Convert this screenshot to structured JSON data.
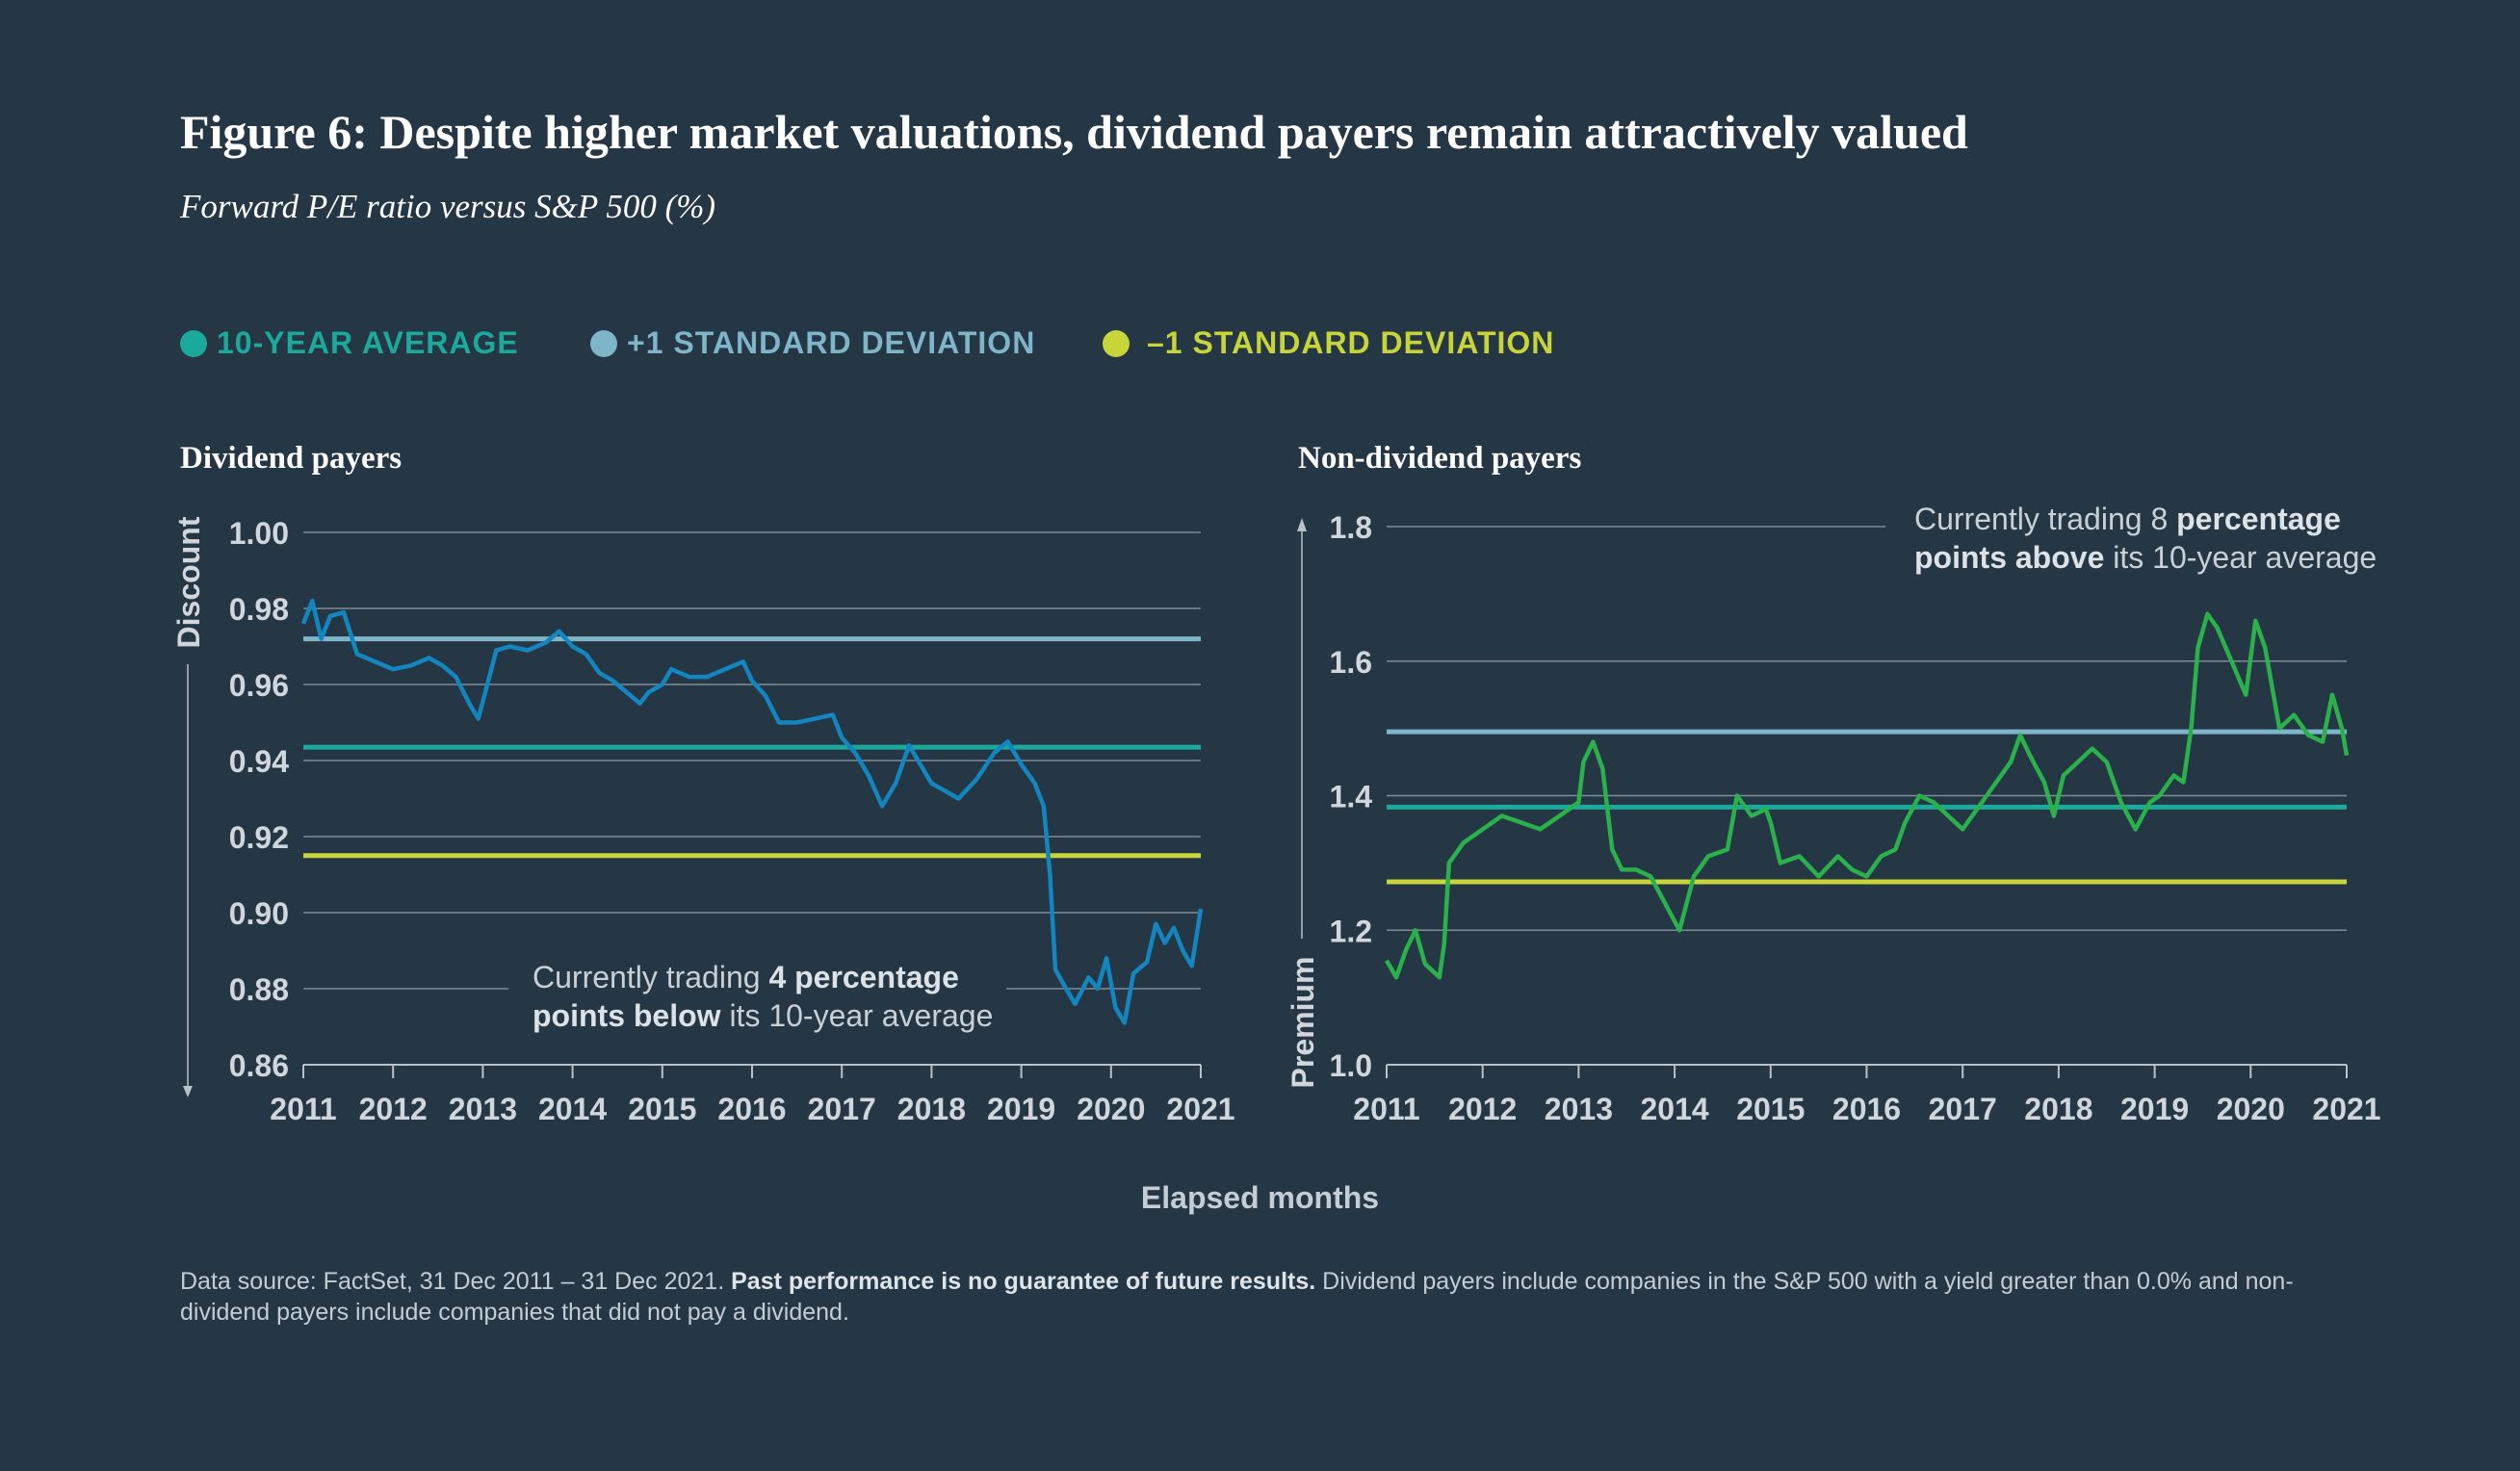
{
  "title": "Figure 6: Despite higher market valuations, dividend payers remain attractively valued",
  "subtitle": "Forward P/E ratio versus S&P 500 (%)",
  "legend": [
    {
      "label": "10-YEAR AVERAGE",
      "color": "#1aa99a"
    },
    {
      "label": "+1 STANDARD DEVIATION",
      "color": "#7fb5c8"
    },
    {
      "label": "–1 STANDARD DEVIATION",
      "color": "#c8d538"
    }
  ],
  "x_axis_label": "Elapsed months",
  "footnote": {
    "part1": "Data source: FactSet, 31 Dec 2011 – 31 Dec 2021. ",
    "bold": "Past performance is no guarantee of future results.",
    "part2": " Dividend payers include companies in the S&P 500 with a yield greater than 0.0% and non-dividend payers include companies that did not pay a dividend."
  },
  "chart_data": [
    {
      "type": "line",
      "title": "Dividend payers",
      "ylabel_top": "Discount",
      "ylim": [
        0.86,
        1.0
      ],
      "yticks": [
        "1.00",
        "0.98",
        "0.96",
        "0.94",
        "0.92",
        "0.90",
        "0.88",
        "0.86"
      ],
      "xlim": [
        2011,
        2021
      ],
      "xticks": [
        "2011",
        "2012",
        "2013",
        "2014",
        "2015",
        "2016",
        "2017",
        "2018",
        "2019",
        "2020",
        "2021"
      ],
      "line_color": "#1386bf",
      "reference_lines": {
        "plus_1_sd": 0.972,
        "average": 0.9435,
        "minus_1_sd": 0.915
      },
      "annotation": {
        "pre": "Currently trading ",
        "bold1": "4 percentage",
        "bold2": "points below",
        "post": " its 10-year average"
      },
      "series": [
        [
          2011.0,
          0.976
        ],
        [
          2011.1,
          0.982
        ],
        [
          2011.2,
          0.972
        ],
        [
          2011.3,
          0.978
        ],
        [
          2011.45,
          0.979
        ],
        [
          2011.6,
          0.968
        ],
        [
          2011.8,
          0.966
        ],
        [
          2012.0,
          0.964
        ],
        [
          2012.2,
          0.965
        ],
        [
          2012.4,
          0.967
        ],
        [
          2012.55,
          0.965
        ],
        [
          2012.7,
          0.962
        ],
        [
          2012.85,
          0.955
        ],
        [
          2012.95,
          0.951
        ],
        [
          2013.05,
          0.96
        ],
        [
          2013.15,
          0.969
        ],
        [
          2013.3,
          0.97
        ],
        [
          2013.5,
          0.969
        ],
        [
          2013.7,
          0.971
        ],
        [
          2013.85,
          0.974
        ],
        [
          2014.0,
          0.97
        ],
        [
          2014.15,
          0.968
        ],
        [
          2014.3,
          0.963
        ],
        [
          2014.45,
          0.961
        ],
        [
          2014.6,
          0.958
        ],
        [
          2014.75,
          0.955
        ],
        [
          2014.85,
          0.958
        ],
        [
          2015.0,
          0.96
        ],
        [
          2015.1,
          0.964
        ],
        [
          2015.3,
          0.962
        ],
        [
          2015.5,
          0.962
        ],
        [
          2015.7,
          0.964
        ],
        [
          2015.9,
          0.966
        ],
        [
          2016.0,
          0.961
        ],
        [
          2016.15,
          0.957
        ],
        [
          2016.3,
          0.95
        ],
        [
          2016.5,
          0.95
        ],
        [
          2016.7,
          0.951
        ],
        [
          2016.9,
          0.952
        ],
        [
          2017.0,
          0.946
        ],
        [
          2017.15,
          0.942
        ],
        [
          2017.3,
          0.936
        ],
        [
          2017.45,
          0.928
        ],
        [
          2017.6,
          0.934
        ],
        [
          2017.75,
          0.944
        ],
        [
          2017.85,
          0.94
        ],
        [
          2018.0,
          0.934
        ],
        [
          2018.15,
          0.932
        ],
        [
          2018.3,
          0.93
        ],
        [
          2018.5,
          0.935
        ],
        [
          2018.7,
          0.942
        ],
        [
          2018.85,
          0.945
        ],
        [
          2019.0,
          0.939
        ],
        [
          2019.15,
          0.934
        ],
        [
          2019.25,
          0.928
        ],
        [
          2019.32,
          0.91
        ],
        [
          2019.38,
          0.885
        ],
        [
          2019.5,
          0.88
        ],
        [
          2019.6,
          0.876
        ],
        [
          2019.75,
          0.883
        ],
        [
          2019.85,
          0.88
        ],
        [
          2019.95,
          0.888
        ],
        [
          2020.05,
          0.875
        ],
        [
          2020.15,
          0.871
        ],
        [
          2020.25,
          0.884
        ],
        [
          2020.4,
          0.887
        ],
        [
          2020.5,
          0.897
        ],
        [
          2020.6,
          0.892
        ],
        [
          2020.7,
          0.896
        ],
        [
          2020.8,
          0.89
        ],
        [
          2020.9,
          0.886
        ],
        [
          2021.0,
          0.901
        ]
      ]
    },
    {
      "type": "line",
      "title": "Non-dividend payers",
      "ylabel_bottom": "Premium",
      "ylim": [
        1.0,
        1.8
      ],
      "yticks": [
        "1.8",
        "1.6",
        "1.4",
        "1.2",
        "1.0"
      ],
      "xlim": [
        2011,
        2021
      ],
      "xticks": [
        "2011",
        "2012",
        "2013",
        "2014",
        "2015",
        "2016",
        "2017",
        "2018",
        "2019",
        "2020",
        "2021"
      ],
      "line_color": "#2ab14b",
      "reference_lines": {
        "plus_1_sd": 1.495,
        "average": 1.383,
        "minus_1_sd": 1.272
      },
      "annotation": {
        "pre": "Currently trading 8 ",
        "bold1": "percentage",
        "bold2": "points above",
        "post": " its 10-year average"
      },
      "series": [
        [
          2011.0,
          1.155
        ],
        [
          2011.1,
          1.13
        ],
        [
          2011.2,
          1.17
        ],
        [
          2011.3,
          1.2
        ],
        [
          2011.4,
          1.15
        ],
        [
          2011.55,
          1.13
        ],
        [
          2011.6,
          1.18
        ],
        [
          2011.65,
          1.3
        ],
        [
          2011.8,
          1.33
        ],
        [
          2012.0,
          1.35
        ],
        [
          2012.2,
          1.37
        ],
        [
          2012.4,
          1.36
        ],
        [
          2012.6,
          1.35
        ],
        [
          2012.8,
          1.37
        ],
        [
          2013.0,
          1.39
        ],
        [
          2013.05,
          1.45
        ],
        [
          2013.15,
          1.48
        ],
        [
          2013.25,
          1.44
        ],
        [
          2013.35,
          1.32
        ],
        [
          2013.45,
          1.29
        ],
        [
          2013.6,
          1.29
        ],
        [
          2013.75,
          1.28
        ],
        [
          2013.9,
          1.24
        ],
        [
          2014.05,
          1.2
        ],
        [
          2014.2,
          1.28
        ],
        [
          2014.35,
          1.31
        ],
        [
          2014.55,
          1.32
        ],
        [
          2014.65,
          1.4
        ],
        [
          2014.8,
          1.37
        ],
        [
          2014.95,
          1.38
        ],
        [
          2015.0,
          1.36
        ],
        [
          2015.1,
          1.3
        ],
        [
          2015.3,
          1.31
        ],
        [
          2015.5,
          1.28
        ],
        [
          2015.7,
          1.31
        ],
        [
          2015.85,
          1.29
        ],
        [
          2016.0,
          1.28
        ],
        [
          2016.15,
          1.31
        ],
        [
          2016.3,
          1.32
        ],
        [
          2016.4,
          1.36
        ],
        [
          2016.55,
          1.4
        ],
        [
          2016.7,
          1.39
        ],
        [
          2016.85,
          1.37
        ],
        [
          2017.0,
          1.35
        ],
        [
          2017.2,
          1.39
        ],
        [
          2017.35,
          1.42
        ],
        [
          2017.5,
          1.45
        ],
        [
          2017.6,
          1.49
        ],
        [
          2017.7,
          1.46
        ],
        [
          2017.85,
          1.42
        ],
        [
          2017.95,
          1.37
        ],
        [
          2018.05,
          1.43
        ],
        [
          2018.2,
          1.45
        ],
        [
          2018.35,
          1.47
        ],
        [
          2018.5,
          1.45
        ],
        [
          2018.65,
          1.39
        ],
        [
          2018.8,
          1.35
        ],
        [
          2018.95,
          1.39
        ],
        [
          2019.05,
          1.4
        ],
        [
          2019.2,
          1.43
        ],
        [
          2019.3,
          1.42
        ],
        [
          2019.38,
          1.5
        ],
        [
          2019.45,
          1.62
        ],
        [
          2019.55,
          1.67
        ],
        [
          2019.65,
          1.65
        ],
        [
          2019.8,
          1.6
        ],
        [
          2019.95,
          1.55
        ],
        [
          2020.05,
          1.66
        ],
        [
          2020.15,
          1.62
        ],
        [
          2020.3,
          1.5
        ],
        [
          2020.45,
          1.52
        ],
        [
          2020.6,
          1.49
        ],
        [
          2020.75,
          1.48
        ],
        [
          2020.85,
          1.55
        ],
        [
          2020.95,
          1.5
        ],
        [
          2021.0,
          1.46
        ]
      ]
    }
  ]
}
